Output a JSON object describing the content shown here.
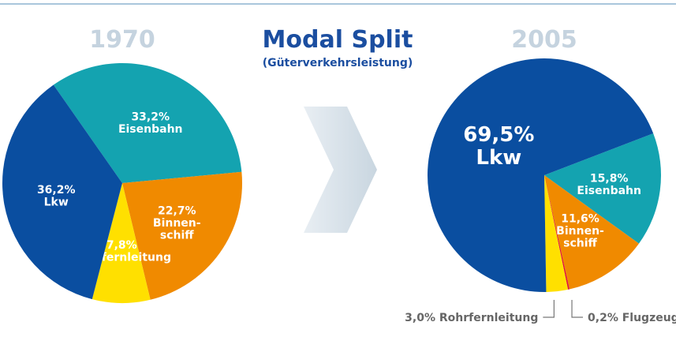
{
  "header": {
    "title": "Modal Split",
    "subtitle": "(Güterverkehrsleistung)"
  },
  "chart_data": [
    {
      "type": "pie",
      "title": "1970",
      "categories": [
        "Eisenbahn",
        "Binnen-\nschiff",
        "Rohrfernleitung",
        "Lkw"
      ],
      "values": [
        33.2,
        22.7,
        7.8,
        36.2
      ],
      "value_labels": [
        "33,2%",
        "22,7%",
        "7,8%",
        "36,2%"
      ],
      "colors": [
        "#14a3b0",
        "#f08a00",
        "#ffe000",
        "#0a4ea0"
      ]
    },
    {
      "type": "pie",
      "title": "2005",
      "categories": [
        "Eisenbahn",
        "Binnen-\nschiff",
        "Flugzeug",
        "Rohrfernleitung",
        "Lkw"
      ],
      "values": [
        15.8,
        11.6,
        0.2,
        3.0,
        69.5
      ],
      "value_labels": [
        "15,8%",
        "11,6%",
        "0,2%",
        "3,0%",
        "69,5%"
      ],
      "colors": [
        "#14a3b0",
        "#f08a00",
        "#e0103a",
        "#ffe000",
        "#0a4ea0"
      ]
    }
  ]
}
